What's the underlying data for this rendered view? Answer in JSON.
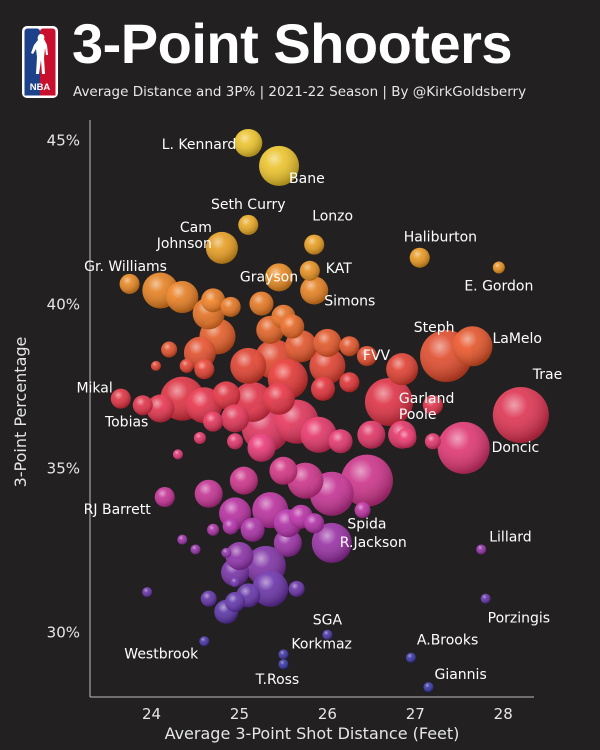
{
  "logo": {
    "text": "NBA",
    "colors": {
      "blue": "#1d4289",
      "red": "#c8102e",
      "white": "#ffffff"
    }
  },
  "header": {
    "title": "3-Point Shooters",
    "subtitle": "Average Distance and 3P% | 2021-22 Season | By @KirkGoldsberry"
  },
  "chart_data": {
    "type": "scatter",
    "title": "3-Point Shooters",
    "subtitle": "Average Distance and 3P% | 2021-22 Season | By @KirkGoldsberry",
    "xlabel": "Average 3-Point Shot Distance (Feet)",
    "ylabel": "3-Point Percentage",
    "xlim": [
      23.3,
      28.35
    ],
    "ylim": [
      28.0,
      45.6
    ],
    "xticks": [
      24,
      25,
      26,
      27,
      28
    ],
    "xtick_labels": [
      "24",
      "25",
      "26",
      "27",
      "28"
    ],
    "yticks": [
      30,
      35,
      40,
      45
    ],
    "ytick_labels": [
      "30%",
      "35%",
      "40%",
      "45%"
    ],
    "grid": false,
    "size_meaning": "bubble size ~ 3-point volume",
    "color_scale": "3P% (purple low -> yellow high)",
    "labeled_points": [
      {
        "label": "L. Kennard",
        "x": 25.1,
        "y": 44.9,
        "size": 14,
        "anchor": "end",
        "dx": -12,
        "dy": 6
      },
      {
        "label": "Bane",
        "x": 25.45,
        "y": 44.2,
        "size": 20,
        "anchor": "start",
        "dx": 10,
        "dy": 17
      },
      {
        "label": "Seth Curry",
        "x": 25.1,
        "y": 42.4,
        "size": 10,
        "anchor": "middle",
        "dx": 0,
        "dy": -16
      },
      {
        "label": "Lonzo",
        "x": 25.85,
        "y": 41.8,
        "size": 10,
        "anchor": "start",
        "dx": -2,
        "dy": -24
      },
      {
        "label": "Cam\nJohnson",
        "x": 24.8,
        "y": 41.7,
        "size": 16,
        "anchor": "end",
        "dx": -10,
        "dy": -16
      },
      {
        "label": "Haliburton",
        "x": 27.05,
        "y": 41.4,
        "size": 10,
        "anchor": "start",
        "dx": -16,
        "dy": -16
      },
      {
        "label": "Gr. Williams",
        "x": 23.75,
        "y": 40.6,
        "size": 10,
        "anchor": "middle",
        "dx": -4,
        "dy": -13
      },
      {
        "label": "Grayson",
        "x": 25.45,
        "y": 40.8,
        "size": 14,
        "anchor": "middle",
        "dx": -10,
        "dy": 4
      },
      {
        "label": "KAT",
        "x": 25.8,
        "y": 41.0,
        "size": 10,
        "anchor": "start",
        "dx": 16,
        "dy": 2
      },
      {
        "label": "Simons",
        "x": 25.85,
        "y": 40.4,
        "size": 14,
        "anchor": "start",
        "dx": 10,
        "dy": 15
      },
      {
        "label": "E. Gordon",
        "x": 27.95,
        "y": 41.1,
        "size": 6,
        "anchor": "middle",
        "dx": 0,
        "dy": 23
      },
      {
        "label": "Steph",
        "x": 27.35,
        "y": 38.4,
        "size": 26,
        "anchor": "middle",
        "dx": -12,
        "dy": -24
      },
      {
        "label": "LaMelo",
        "x": 27.65,
        "y": 38.7,
        "size": 20,
        "anchor": "start",
        "dx": 20,
        "dy": -3
      },
      {
        "label": "FVV",
        "x": 26.85,
        "y": 38.0,
        "size": 16,
        "anchor": "end",
        "dx": -12,
        "dy": -9
      },
      {
        "label": "Mikal",
        "x": 23.65,
        "y": 37.1,
        "size": 10,
        "anchor": "end",
        "dx": -8,
        "dy": -6
      },
      {
        "label": "Trae",
        "x": 28.2,
        "y": 36.6,
        "size": 28,
        "anchor": "start",
        "dx": 12,
        "dy": -36
      },
      {
        "label": "Garland\nPoole",
        "x": 26.7,
        "y": 37.0,
        "size": 24,
        "anchor": "start",
        "dx": 10,
        "dy": 1
      },
      {
        "label": "Tobias",
        "x": 24.1,
        "y": 36.8,
        "size": 14,
        "anchor": "end",
        "dx": -12,
        "dy": 18
      },
      {
        "label": "Doncic",
        "x": 27.55,
        "y": 35.6,
        "size": 26,
        "anchor": "start",
        "dx": 28,
        "dy": 4
      },
      {
        "label": "RJ Barrett",
        "x": 24.15,
        "y": 34.1,
        "size": 10,
        "anchor": "end",
        "dx": -14,
        "dy": 17
      },
      {
        "label": "Spida",
        "x": 26.45,
        "y": 34.6,
        "size": 26,
        "anchor": "middle",
        "dx": 0,
        "dy": 48
      },
      {
        "label": "R.Jackson",
        "x": 26.05,
        "y": 32.7,
        "size": 20,
        "anchor": "start",
        "dx": 8,
        "dy": 4
      },
      {
        "label": "Lillard",
        "x": 27.75,
        "y": 32.5,
        "size": 5,
        "anchor": "start",
        "dx": 8,
        "dy": -8
      },
      {
        "label": "Porzingis",
        "x": 27.8,
        "y": 31.0,
        "size": 5,
        "anchor": "start",
        "dx": 2,
        "dy": 24
      },
      {
        "label": "SGA",
        "x": 26.0,
        "y": 29.9,
        "size": 5,
        "anchor": "middle",
        "dx": 0,
        "dy": -10
      },
      {
        "label": "Westbrook",
        "x": 24.6,
        "y": 29.7,
        "size": 5,
        "anchor": "end",
        "dx": -6,
        "dy": 17
      },
      {
        "label": "Korkmaz",
        "x": 25.5,
        "y": 29.3,
        "size": 5,
        "anchor": "start",
        "dx": 8,
        "dy": -6
      },
      {
        "label": "T.Ross",
        "x": 25.5,
        "y": 29.0,
        "size": 5,
        "anchor": "middle",
        "dx": -6,
        "dy": 20
      },
      {
        "label": "A.Brooks",
        "x": 26.95,
        "y": 29.2,
        "size": 5,
        "anchor": "start",
        "dx": 6,
        "dy": -13
      },
      {
        "label": "Giannis",
        "x": 27.15,
        "y": 28.3,
        "size": 5,
        "anchor": "start",
        "dx": 6,
        "dy": -8
      }
    ],
    "unlabeled_points": [
      [
        24.1,
        40.4,
        18
      ],
      [
        24.35,
        40.2,
        16
      ],
      [
        24.65,
        39.7,
        16
      ],
      [
        24.7,
        40.1,
        12
      ],
      [
        24.9,
        39.9,
        10
      ],
      [
        25.25,
        40.0,
        12
      ],
      [
        25.5,
        39.6,
        12
      ],
      [
        25.35,
        39.2,
        14
      ],
      [
        25.6,
        39.3,
        12
      ],
      [
        24.75,
        39.0,
        18
      ],
      [
        24.55,
        38.5,
        16
      ],
      [
        24.2,
        38.6,
        8
      ],
      [
        24.4,
        38.1,
        7
      ],
      [
        24.6,
        38.0,
        10
      ],
      [
        25.1,
        38.1,
        18
      ],
      [
        25.4,
        38.3,
        20
      ],
      [
        25.7,
        38.7,
        16
      ],
      [
        26.0,
        38.8,
        14
      ],
      [
        26.25,
        38.7,
        10
      ],
      [
        26.0,
        38.1,
        18
      ],
      [
        25.55,
        37.7,
        20
      ],
      [
        25.95,
        37.4,
        12
      ],
      [
        26.45,
        38.4,
        10
      ],
      [
        24.35,
        37.1,
        22
      ],
      [
        24.6,
        36.9,
        18
      ],
      [
        24.85,
        37.2,
        14
      ],
      [
        25.15,
        37.0,
        20
      ],
      [
        25.45,
        37.1,
        16
      ],
      [
        24.95,
        36.5,
        14
      ],
      [
        25.3,
        36.2,
        24
      ],
      [
        25.65,
        36.4,
        22
      ],
      [
        25.9,
        36.0,
        18
      ],
      [
        26.15,
        35.8,
        12
      ],
      [
        25.25,
        35.6,
        14
      ],
      [
        24.95,
        35.8,
        8
      ],
      [
        24.7,
        36.4,
        10
      ],
      [
        23.9,
        36.9,
        10
      ],
      [
        24.05,
        38.1,
        5
      ],
      [
        24.55,
        35.9,
        6
      ],
      [
        26.5,
        36.0,
        14
      ],
      [
        26.25,
        37.6,
        10
      ],
      [
        26.85,
        36.0,
        14
      ],
      [
        27.2,
        36.9,
        10
      ],
      [
        25.05,
        34.6,
        14
      ],
      [
        25.5,
        34.9,
        14
      ],
      [
        25.75,
        34.6,
        18
      ],
      [
        26.05,
        34.2,
        22
      ],
      [
        25.7,
        33.5,
        12
      ],
      [
        25.35,
        33.7,
        18
      ],
      [
        24.95,
        33.6,
        16
      ],
      [
        24.65,
        34.2,
        14
      ],
      [
        25.15,
        33.1,
        12
      ],
      [
        25.55,
        32.7,
        14
      ],
      [
        25.3,
        32.0,
        20
      ],
      [
        24.95,
        31.8,
        14
      ],
      [
        25.35,
        31.3,
        18
      ],
      [
        25.1,
        31.1,
        12
      ],
      [
        24.95,
        30.9,
        10
      ],
      [
        25.65,
        31.3,
        8
      ],
      [
        25.55,
        33.3,
        14
      ],
      [
        25.0,
        32.3,
        14
      ],
      [
        24.9,
        33.2,
        8
      ],
      [
        24.7,
        33.1,
        6
      ],
      [
        24.85,
        32.4,
        5
      ],
      [
        24.5,
        32.5,
        5
      ],
      [
        24.95,
        31.5,
        5
      ],
      [
        24.65,
        31.0,
        8
      ],
      [
        24.85,
        30.6,
        12
      ],
      [
        23.95,
        31.2,
        5
      ],
      [
        24.35,
        32.8,
        5
      ],
      [
        24.3,
        35.4,
        5
      ],
      [
        25.85,
        33.3,
        10
      ],
      [
        26.4,
        33.7,
        8
      ],
      [
        26.9,
        35.9,
        10
      ],
      [
        27.2,
        35.8,
        8
      ]
    ]
  }
}
